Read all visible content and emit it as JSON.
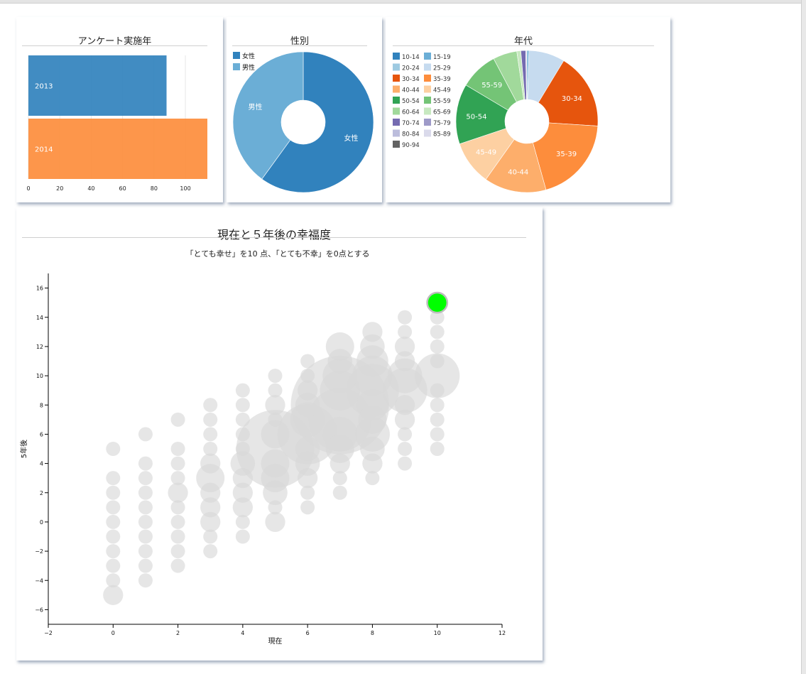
{
  "colors": {
    "blue": "#3182bd",
    "light_blue": "#6baed6",
    "orange": "#fd8d3c",
    "bubble": "#d9d9d9",
    "highlight": "#00ff00"
  },
  "chart_data": [
    {
      "id": "survey-year",
      "type": "bar",
      "orientation": "horizontal",
      "title": "アンケート実施年",
      "categories": [
        "2013",
        "2014"
      ],
      "values": [
        88,
        114
      ],
      "colors": [
        "#3182bd",
        "#fd8d3c"
      ],
      "xlim": [
        0,
        114
      ],
      "xticks": [
        0,
        20,
        40,
        60,
        80,
        100
      ],
      "grid": true
    },
    {
      "id": "gender",
      "type": "pie",
      "donut": true,
      "title": "性別",
      "labels": [
        "女性",
        "男性"
      ],
      "values": [
        60,
        40
      ],
      "colors": [
        "#3182bd",
        "#6baed6"
      ],
      "legend": [
        "女性",
        "男性"
      ],
      "legend_position": "top-left"
    },
    {
      "id": "age",
      "type": "pie",
      "donut": true,
      "title": "年代",
      "legend": [
        "10-14",
        "15-19",
        "20-24",
        "25-29",
        "30-34",
        "35-39",
        "40-44",
        "45-49",
        "50-54",
        "55-59",
        "60-64",
        "65-69",
        "70-74",
        "75-79",
        "80-84",
        "85-89",
        "90-94"
      ],
      "legend_colors": [
        "#3182bd",
        "#6baed6",
        "#9ecae1",
        "#c6dbef",
        "#e6550d",
        "#fd8d3c",
        "#fdae6b",
        "#fdd0a2",
        "#31a354",
        "#74c476",
        "#a1d99b",
        "#c7e9c0",
        "#756bb1",
        "#9e9ac8",
        "#bcbddc",
        "#dadaeb",
        "#636363"
      ],
      "legend_position": "top-left",
      "slices": [
        {
          "label": "15-19",
          "value": 0.5,
          "color": "#6baed6"
        },
        {
          "label": "25-29",
          "value": 9.0,
          "color": "#c6dbef"
        },
        {
          "label": "30-34",
          "value": 19.0,
          "color": "#e6550d"
        },
        {
          "label": "35-39",
          "value": 21.5,
          "color": "#fd8d3c"
        },
        {
          "label": "40-44",
          "value": 15.5,
          "color": "#fdae6b"
        },
        {
          "label": "45-49",
          "value": 11.0,
          "color": "#fdd0a2"
        },
        {
          "label": "50-54",
          "value": 15.0,
          "color": "#31a354"
        },
        {
          "label": "55-59",
          "value": 9.5,
          "color": "#74c476"
        },
        {
          "label": "60-64",
          "value": 6.0,
          "color": "#a1d99b"
        },
        {
          "label": "65-69",
          "value": 1.0,
          "color": "#c7e9c0"
        },
        {
          "label": "70-74",
          "value": 1.2,
          "color": "#756bb1"
        },
        {
          "label": "85-89",
          "value": 0.3,
          "color": "#dadaeb"
        }
      ],
      "slice_labels": [
        "30-34",
        "35-39",
        "40-44",
        "45-49",
        "50-54",
        "55-59"
      ]
    },
    {
      "id": "happiness",
      "type": "scatter",
      "title": "現在と５年後の幸福度",
      "subtitle": "「とても幸せ」を10 点、「とても不幸」を0点とする",
      "xlabel": "現在",
      "ylabel": "5年後",
      "xlim": [
        -2,
        12
      ],
      "ylim": [
        -7,
        17
      ],
      "xticks": [
        -2,
        0,
        2,
        4,
        6,
        8,
        10,
        12
      ],
      "yticks": [
        -6,
        -4,
        -2,
        0,
        2,
        4,
        6,
        8,
        10,
        12,
        14,
        16
      ],
      "highlight": {
        "x": 10,
        "y": 15,
        "count": 2
      },
      "points": [
        {
          "x": 0,
          "y": 5,
          "count": 1
        },
        {
          "x": 0,
          "y": 3,
          "count": 1
        },
        {
          "x": 0,
          "y": 2,
          "count": 1
        },
        {
          "x": 0,
          "y": 1,
          "count": 1
        },
        {
          "x": 0,
          "y": 0,
          "count": 1
        },
        {
          "x": 0,
          "y": -1,
          "count": 1
        },
        {
          "x": 0,
          "y": -2,
          "count": 1
        },
        {
          "x": 0,
          "y": -3,
          "count": 1
        },
        {
          "x": 0,
          "y": -4,
          "count": 1
        },
        {
          "x": 0,
          "y": -5,
          "count": 2
        },
        {
          "x": 1,
          "y": 6,
          "count": 1
        },
        {
          "x": 1,
          "y": 4,
          "count": 1
        },
        {
          "x": 1,
          "y": 3,
          "count": 1
        },
        {
          "x": 1,
          "y": 2,
          "count": 1
        },
        {
          "x": 1,
          "y": 1,
          "count": 1
        },
        {
          "x": 1,
          "y": 0,
          "count": 1
        },
        {
          "x": 1,
          "y": -1,
          "count": 1
        },
        {
          "x": 1,
          "y": -2,
          "count": 1
        },
        {
          "x": 1,
          "y": -3,
          "count": 1
        },
        {
          "x": 1,
          "y": -4,
          "count": 1
        },
        {
          "x": 2,
          "y": 7,
          "count": 1
        },
        {
          "x": 2,
          "y": 5,
          "count": 1
        },
        {
          "x": 2,
          "y": 4,
          "count": 1
        },
        {
          "x": 2,
          "y": 3,
          "count": 1
        },
        {
          "x": 2,
          "y": 2,
          "count": 2
        },
        {
          "x": 2,
          "y": 1,
          "count": 1
        },
        {
          "x": 2,
          "y": 0,
          "count": 1
        },
        {
          "x": 2,
          "y": -1,
          "count": 1
        },
        {
          "x": 2,
          "y": -2,
          "count": 1
        },
        {
          "x": 2,
          "y": -3,
          "count": 1
        },
        {
          "x": 3,
          "y": 8,
          "count": 1
        },
        {
          "x": 3,
          "y": 7,
          "count": 1
        },
        {
          "x": 3,
          "y": 6,
          "count": 1
        },
        {
          "x": 3,
          "y": 5,
          "count": 1
        },
        {
          "x": 3,
          "y": 4,
          "count": 2
        },
        {
          "x": 3,
          "y": 3,
          "count": 4
        },
        {
          "x": 3,
          "y": 2,
          "count": 2
        },
        {
          "x": 3,
          "y": 1,
          "count": 2
        },
        {
          "x": 3,
          "y": 0,
          "count": 2
        },
        {
          "x": 3,
          "y": -1,
          "count": 1
        },
        {
          "x": 3,
          "y": -2,
          "count": 1
        },
        {
          "x": 4,
          "y": 9,
          "count": 1
        },
        {
          "x": 4,
          "y": 8,
          "count": 1
        },
        {
          "x": 4,
          "y": 7,
          "count": 1
        },
        {
          "x": 4,
          "y": 6,
          "count": 1
        },
        {
          "x": 4,
          "y": 5,
          "count": 1
        },
        {
          "x": 4,
          "y": 4,
          "count": 3
        },
        {
          "x": 4,
          "y": 3,
          "count": 2
        },
        {
          "x": 4,
          "y": 2,
          "count": 2
        },
        {
          "x": 4,
          "y": 1,
          "count": 2
        },
        {
          "x": 4,
          "y": 0,
          "count": 1
        },
        {
          "x": 4,
          "y": -1,
          "count": 1
        },
        {
          "x": 5,
          "y": 10,
          "count": 1
        },
        {
          "x": 5,
          "y": 9,
          "count": 1
        },
        {
          "x": 5,
          "y": 8,
          "count": 2
        },
        {
          "x": 5,
          "y": 7,
          "count": 1
        },
        {
          "x": 5,
          "y": 6,
          "count": 4
        },
        {
          "x": 5,
          "y": 5,
          "count": 30
        },
        {
          "x": 5,
          "y": 4,
          "count": 4
        },
        {
          "x": 5,
          "y": 3,
          "count": 4
        },
        {
          "x": 5,
          "y": 2,
          "count": 3
        },
        {
          "x": 5,
          "y": 1,
          "count": 1
        },
        {
          "x": 5,
          "y": 0,
          "count": 2
        },
        {
          "x": 6,
          "y": 11,
          "count": 1
        },
        {
          "x": 6,
          "y": 10,
          "count": 1
        },
        {
          "x": 6,
          "y": 9,
          "count": 2
        },
        {
          "x": 6,
          "y": 8,
          "count": 3
        },
        {
          "x": 6,
          "y": 7,
          "count": 6
        },
        {
          "x": 6,
          "y": 6,
          "count": 18
        },
        {
          "x": 6,
          "y": 5,
          "count": 3
        },
        {
          "x": 6,
          "y": 4,
          "count": 3
        },
        {
          "x": 6,
          "y": 3,
          "count": 2
        },
        {
          "x": 6,
          "y": 2,
          "count": 1
        },
        {
          "x": 6,
          "y": 1,
          "count": 1
        },
        {
          "x": 7,
          "y": 12,
          "count": 4
        },
        {
          "x": 7,
          "y": 11,
          "count": 3
        },
        {
          "x": 7,
          "y": 10,
          "count": 6
        },
        {
          "x": 7,
          "y": 9,
          "count": 8
        },
        {
          "x": 7,
          "y": 8,
          "count": 48
        },
        {
          "x": 7,
          "y": 7,
          "count": 20
        },
        {
          "x": 7,
          "y": 6,
          "count": 6
        },
        {
          "x": 7,
          "y": 5,
          "count": 4
        },
        {
          "x": 7,
          "y": 4,
          "count": 2
        },
        {
          "x": 7,
          "y": 3,
          "count": 1
        },
        {
          "x": 7,
          "y": 2,
          "count": 1
        },
        {
          "x": 8,
          "y": 13,
          "count": 2
        },
        {
          "x": 8,
          "y": 12,
          "count": 3
        },
        {
          "x": 8,
          "y": 11,
          "count": 5
        },
        {
          "x": 8,
          "y": 10,
          "count": 8
        },
        {
          "x": 8,
          "y": 9,
          "count": 14
        },
        {
          "x": 8,
          "y": 8,
          "count": 5
        },
        {
          "x": 8,
          "y": 7,
          "count": 4
        },
        {
          "x": 8,
          "y": 6,
          "count": 6
        },
        {
          "x": 8,
          "y": 5,
          "count": 3
        },
        {
          "x": 8,
          "y": 4,
          "count": 2
        },
        {
          "x": 8,
          "y": 3,
          "count": 1
        },
        {
          "x": 9,
          "y": 14,
          "count": 1
        },
        {
          "x": 9,
          "y": 13,
          "count": 1
        },
        {
          "x": 9,
          "y": 12,
          "count": 2
        },
        {
          "x": 9,
          "y": 11,
          "count": 2
        },
        {
          "x": 9,
          "y": 10,
          "count": 6
        },
        {
          "x": 9,
          "y": 9,
          "count": 10
        },
        {
          "x": 9,
          "y": 8,
          "count": 2
        },
        {
          "x": 9,
          "y": 7,
          "count": 2
        },
        {
          "x": 9,
          "y": 6,
          "count": 1
        },
        {
          "x": 9,
          "y": 5,
          "count": 1
        },
        {
          "x": 9,
          "y": 4,
          "count": 1
        },
        {
          "x": 10,
          "y": 14,
          "count": 1
        },
        {
          "x": 10,
          "y": 13,
          "count": 1
        },
        {
          "x": 10,
          "y": 12,
          "count": 1
        },
        {
          "x": 10,
          "y": 11,
          "count": 1
        },
        {
          "x": 10,
          "y": 10,
          "count": 10
        },
        {
          "x": 10,
          "y": 9,
          "count": 1
        },
        {
          "x": 10,
          "y": 8,
          "count": 1
        },
        {
          "x": 10,
          "y": 7,
          "count": 1
        },
        {
          "x": 10,
          "y": 6,
          "count": 1
        },
        {
          "x": 10,
          "y": 5,
          "count": 1
        }
      ]
    }
  ]
}
